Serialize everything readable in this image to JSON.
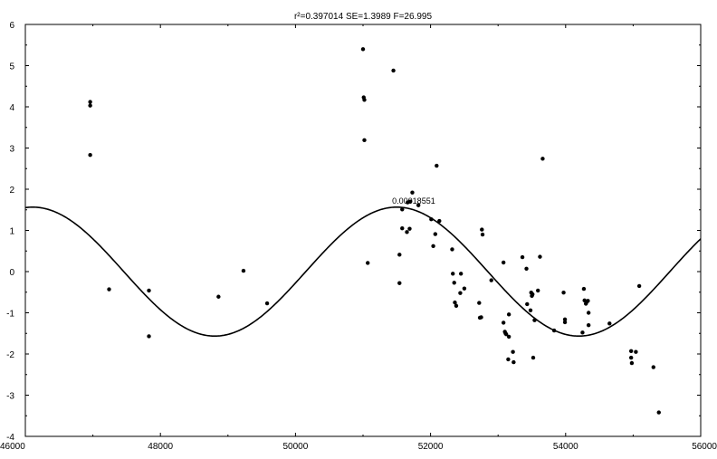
{
  "chart_data": {
    "type": "scatter",
    "title": "r²=0.397014  SE=1.3989  F=26.995",
    "xlabel": "",
    "ylabel": "",
    "xlim": [
      46000,
      56000
    ],
    "ylim": [
      -4,
      6
    ],
    "grid": false,
    "x_ticks": [
      46000,
      48000,
      50000,
      52000,
      54000,
      56000
    ],
    "x_tick_labels": [
      "46000",
      "48000",
      "50000",
      "52000",
      "54000",
      "56000"
    ],
    "y_ticks": [
      -4,
      -3,
      -2,
      -1,
      0,
      1,
      2,
      3,
      4,
      5,
      6
    ],
    "y_tick_labels": [
      "-4",
      "-3",
      "-2",
      "-1",
      "0",
      "1",
      "2",
      "3",
      "4",
      "5",
      "6"
    ],
    "annotation": {
      "text": "0.00018551",
      "x": 51750,
      "y": 1.65
    },
    "fit_curve": {
      "type": "sine",
      "amplitude": 1.565,
      "frequency": 0.00018551,
      "peak_x": 51500,
      "offset": 0
    },
    "points": [
      [
        46960,
        4.12
      ],
      [
        46960,
        4.03
      ],
      [
        46960,
        2.83
      ],
      [
        47240,
        -0.43
      ],
      [
        47830,
        -0.46
      ],
      [
        47830,
        -1.57
      ],
      [
        48860,
        -0.61
      ],
      [
        49230,
        0.02
      ],
      [
        49580,
        -0.77
      ],
      [
        51000,
        5.4
      ],
      [
        51010,
        4.23
      ],
      [
        51020,
        4.17
      ],
      [
        51020,
        3.19
      ],
      [
        51070,
        0.21
      ],
      [
        51450,
        4.88
      ],
      [
        51540,
        -0.28
      ],
      [
        51540,
        0.41
      ],
      [
        51580,
        1.05
      ],
      [
        51580,
        1.51
      ],
      [
        51650,
        0.96
      ],
      [
        51660,
        1.68
      ],
      [
        51690,
        1.04
      ],
      [
        51700,
        1.7
      ],
      [
        51730,
        1.92
      ],
      [
        51820,
        1.61
      ],
      [
        52010,
        1.27
      ],
      [
        52040,
        0.62
      ],
      [
        52070,
        0.91
      ],
      [
        52090,
        2.57
      ],
      [
        52130,
        1.23
      ],
      [
        52320,
        0.54
      ],
      [
        52330,
        -0.05
      ],
      [
        52350,
        -0.27
      ],
      [
        52360,
        -0.75
      ],
      [
        52380,
        -0.83
      ],
      [
        52440,
        -0.52
      ],
      [
        52450,
        -0.05
      ],
      [
        52500,
        -0.41
      ],
      [
        52720,
        -0.76
      ],
      [
        52730,
        -1.12
      ],
      [
        52750,
        -1.11
      ],
      [
        52760,
        1.02
      ],
      [
        52770,
        0.9
      ],
      [
        52900,
        -0.21
      ],
      [
        53080,
        0.22
      ],
      [
        53080,
        -1.24
      ],
      [
        53100,
        -1.46
      ],
      [
        53110,
        -1.5
      ],
      [
        53120,
        -1.52
      ],
      [
        53150,
        -2.13
      ],
      [
        53160,
        -1.04
      ],
      [
        53160,
        -1.58
      ],
      [
        53220,
        -1.95
      ],
      [
        53230,
        -2.2
      ],
      [
        53360,
        0.35
      ],
      [
        53420,
        0.07
      ],
      [
        53430,
        -0.79
      ],
      [
        53480,
        -0.94
      ],
      [
        53490,
        -0.51
      ],
      [
        53500,
        -0.59
      ],
      [
        53510,
        -0.55
      ],
      [
        53520,
        -2.09
      ],
      [
        53540,
        -1.18
      ],
      [
        53590,
        -0.46
      ],
      [
        53620,
        0.36
      ],
      [
        53660,
        2.74
      ],
      [
        53830,
        -1.43
      ],
      [
        53970,
        -0.51
      ],
      [
        53990,
        -1.16
      ],
      [
        53990,
        -1.23
      ],
      [
        54250,
        -1.48
      ],
      [
        54270,
        -0.42
      ],
      [
        54280,
        -0.7
      ],
      [
        54300,
        -0.78
      ],
      [
        54310,
        -0.74
      ],
      [
        54330,
        -0.71
      ],
      [
        54340,
        -1.0
      ],
      [
        54340,
        -1.3
      ],
      [
        54650,
        -1.26
      ],
      [
        54970,
        -1.93
      ],
      [
        54970,
        -2.09
      ],
      [
        54980,
        -2.22
      ],
      [
        55040,
        -1.95
      ],
      [
        55090,
        -0.35
      ],
      [
        55300,
        -2.32
      ],
      [
        55380,
        -3.42
      ]
    ]
  }
}
